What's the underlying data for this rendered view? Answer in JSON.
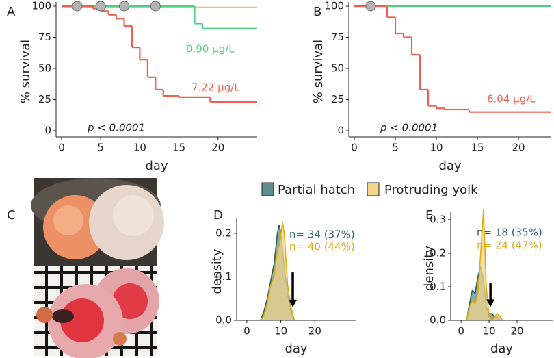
{
  "chart_data": [
    {
      "type": "step",
      "panel": "A",
      "xlabel": "day",
      "ylabel": "% survival",
      "annotation": "p < 0.0001",
      "xlim": [
        0,
        25
      ],
      "ylim": [
        0,
        100
      ],
      "xticks": [
        0,
        5,
        10,
        15,
        20
      ],
      "yticks": [
        0,
        25,
        50,
        75,
        100
      ],
      "series": [
        {
          "color": "#d8c878",
          "x": [
            0
          ],
          "values": [
            99
          ]
        },
        {
          "name": "0.90 μg/L",
          "color": "#4fd07f",
          "x": [
            0,
            17,
            18
          ],
          "values": [
            100,
            86,
            82
          ]
        },
        {
          "name": "7.22 μg/L",
          "color": "#f0604f",
          "x": [
            0,
            4,
            5,
            6,
            7,
            8,
            9,
            10,
            11,
            12,
            13,
            15,
            19
          ],
          "values": [
            100,
            98,
            96,
            93,
            90,
            84,
            67,
            57,
            43,
            33,
            28,
            27,
            23
          ]
        }
      ],
      "markers": {
        "x": [
          2,
          5,
          8,
          12
        ],
        "values": [
          100,
          100,
          100,
          100
        ],
        "color": "#b4b4b4"
      }
    },
    {
      "type": "step",
      "panel": "B",
      "xlabel": "day",
      "ylabel": "% survival",
      "annotation": "p < 0.0001",
      "xlim": [
        0,
        24
      ],
      "ylim": [
        0,
        100
      ],
      "xticks": [
        0,
        5,
        10,
        15,
        20
      ],
      "yticks": [
        0,
        25,
        50,
        75,
        100
      ],
      "series": [
        {
          "color": "#4fd07f",
          "x": [
            0
          ],
          "values": [
            100
          ]
        },
        {
          "name": "6.04 μg/L",
          "color": "#f0604f",
          "x": [
            0,
            4,
            5,
            6,
            7,
            8,
            9,
            10,
            11,
            14
          ],
          "values": [
            100,
            91,
            78,
            75,
            61,
            33,
            20,
            18,
            17,
            15
          ]
        }
      ],
      "markers": {
        "x": [
          2
        ],
        "values": [
          100
        ],
        "color": "#b4b4b4"
      }
    },
    {
      "type": "density",
      "panel": "D",
      "xlabel": "day",
      "ylabel": "density",
      "xlim": [
        -3,
        32
      ],
      "ylim": [
        0,
        0.225
      ],
      "xticks": [
        0,
        10,
        20
      ],
      "yticks": [
        {
          "value": 0,
          "label": "0.0"
        },
        {
          "value": 0.1,
          "label": "0.1"
        },
        {
          "value": 0.2,
          "label": "0.2"
        }
      ],
      "series": [
        {
          "name": "Partial hatch",
          "color": "#2f5e5c",
          "fill": "#5f8f8c",
          "annotation": "n= 34 (37%)",
          "x": [
            4,
            5,
            6,
            7,
            8,
            9,
            9.5,
            10,
            11,
            12,
            13,
            14
          ],
          "values": [
            0,
            0.02,
            0.05,
            0.09,
            0.13,
            0.2,
            0.22,
            0.2,
            0.12,
            0.06,
            0.02,
            0
          ]
        },
        {
          "name": "Protruding yolk",
          "color": "#e2a911",
          "fill": "#f2d48a",
          "annotation": "n= 40 (44%)",
          "x": [
            4,
            5,
            6,
            7,
            8,
            9,
            9.5,
            10.5,
            11,
            12,
            13,
            14
          ],
          "values": [
            0,
            0.01,
            0.04,
            0.08,
            0.1,
            0.16,
            0.17,
            0.225,
            0.2,
            0.08,
            0.03,
            0
          ]
        }
      ],
      "arrow": {
        "x": 13.5,
        "y": [
          0.11,
          0.03
        ]
      }
    },
    {
      "type": "density",
      "panel": "E",
      "xlabel": "day",
      "ylabel": "density",
      "xlim": [
        -3.7,
        32.7
      ],
      "ylim": [
        0,
        0.31
      ],
      "xticks": [
        0,
        10,
        20
      ],
      "yticks": [
        {
          "value": 0,
          "label": "0.0"
        },
        {
          "value": 0.1,
          "label": "0.1"
        },
        {
          "value": 0.2,
          "label": "0.2"
        },
        {
          "value": 0.3,
          "label": "0.3"
        }
      ],
      "series": [
        {
          "color": "#2f5e5c",
          "fill": "#5f8f8c",
          "annotation": "n= 18 (35%)",
          "x": [
            2,
            3,
            4,
            5,
            6,
            7,
            8,
            9,
            10,
            11,
            12,
            13,
            14,
            15
          ],
          "values": [
            0,
            0.05,
            0.09,
            0.08,
            0.13,
            0.16,
            0.12,
            0.04,
            0.02,
            0.02,
            0.01,
            0.01,
            0,
            0
          ]
        },
        {
          "color": "#e2a911",
          "fill": "#f2d48a",
          "annotation": "n= 24 (47%)",
          "x": [
            2,
            3,
            4,
            5,
            6,
            7,
            8,
            9,
            10,
            11,
            12,
            13,
            14,
            15
          ],
          "values": [
            0,
            0.04,
            0.06,
            0.05,
            0.08,
            0.2,
            0.33,
            0.1,
            0.01,
            0,
            0.01,
            0.02,
            0.01,
            0
          ]
        }
      ],
      "arrow": {
        "x": 10.5,
        "y": [
          0.11,
          0.04
        ]
      }
    }
  ],
  "photo_panel": {
    "panel": "C"
  }
}
